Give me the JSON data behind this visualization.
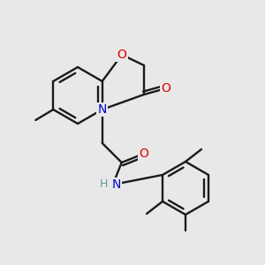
{
  "background_color": "#e8e8e8",
  "bond_color": "#1a1a1a",
  "atom_colors": {
    "O": "#e00000",
    "N": "#0000cc",
    "H": "#5f9ea0",
    "C": "#1a1a1a"
  },
  "figsize": [
    3.0,
    3.0
  ],
  "dpi": 100
}
